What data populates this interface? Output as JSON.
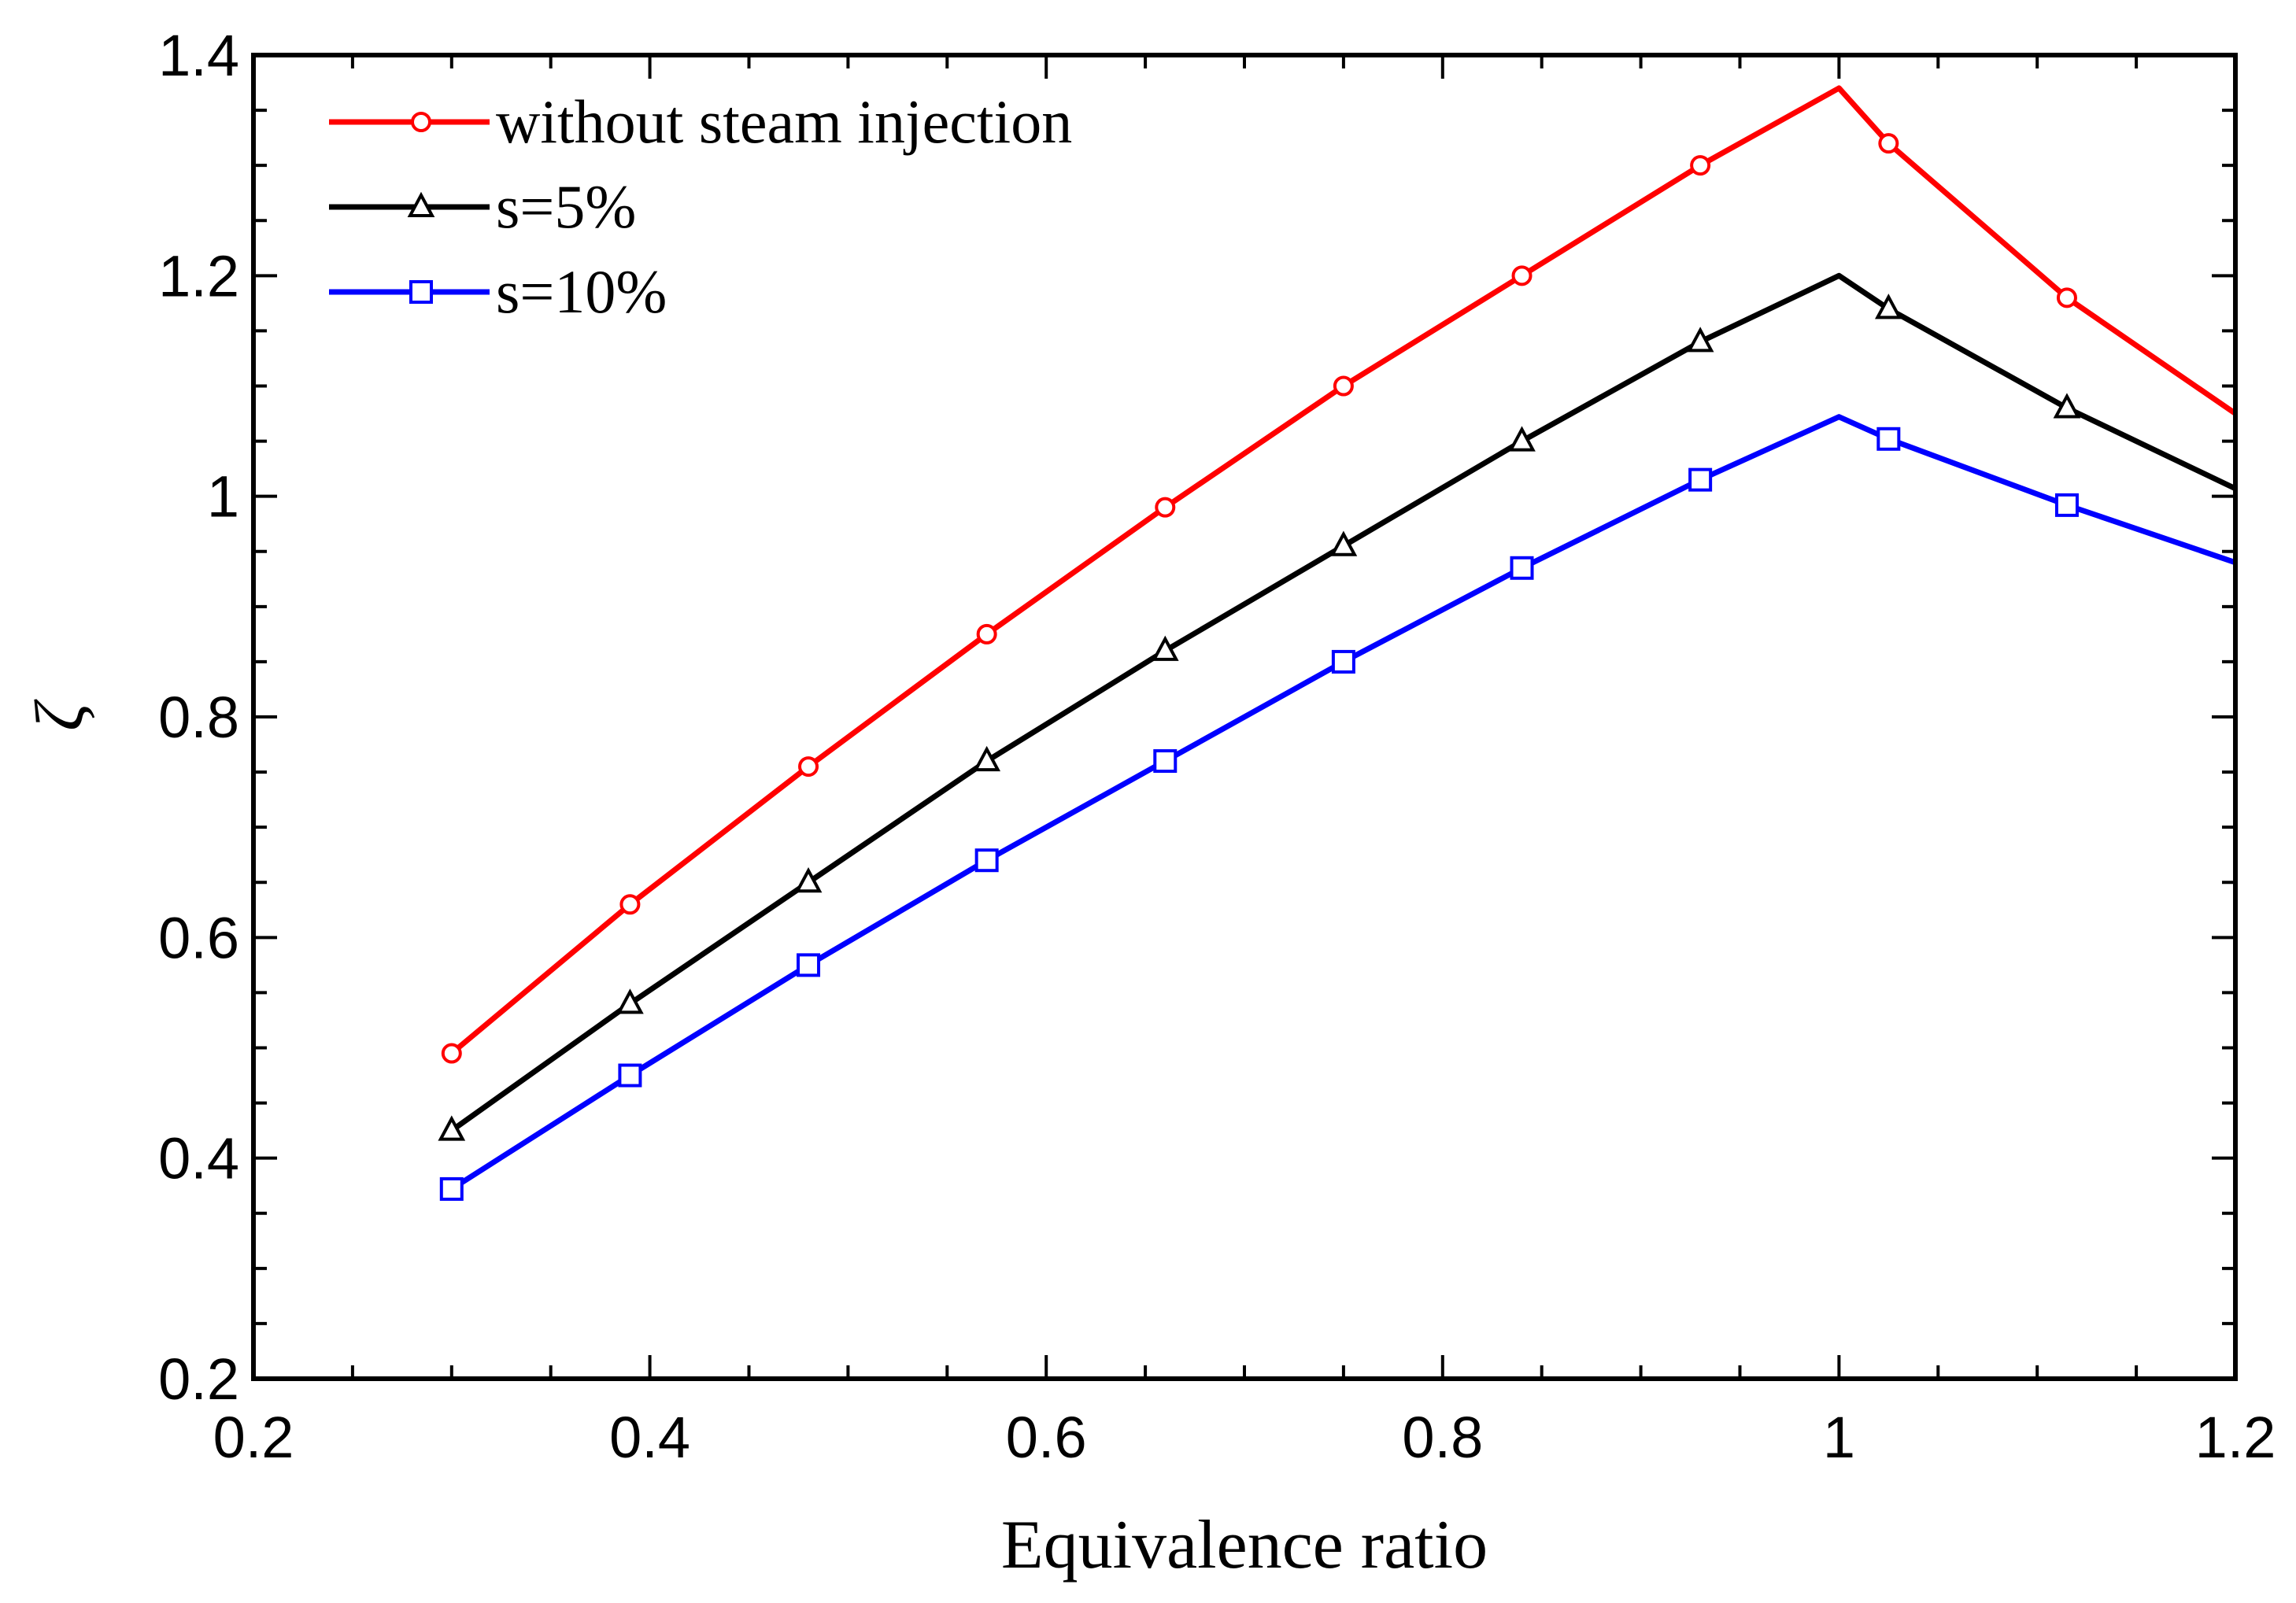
{
  "chart_data": {
    "type": "line",
    "title": "",
    "xlabel": "Equivalence ratio",
    "ylabel": "ζ",
    "xlim": [
      0.2,
      1.2
    ],
    "ylim": [
      0.2,
      1.4
    ],
    "xticks": [
      0.2,
      0.4,
      0.6,
      0.8,
      1.0,
      1.2
    ],
    "xtick_labels": [
      "0.2",
      "0.4",
      "0.6",
      "0.8",
      "1",
      "1.2"
    ],
    "yticks": [
      0.2,
      0.4,
      0.6,
      0.8,
      1.0,
      1.2,
      1.4
    ],
    "ytick_labels": [
      "0.2",
      "0.4",
      "0.6",
      "0.8",
      "1",
      "1.2",
      "1.4"
    ],
    "grid": false,
    "legend_position": "top-left",
    "series": [
      {
        "name": "without steam injection",
        "color": "#ff0000",
        "marker": "circle",
        "points": [
          [
            0.3,
            0.495
          ],
          [
            0.39,
            0.63
          ],
          [
            0.48,
            0.755
          ],
          [
            0.57,
            0.875
          ],
          [
            0.66,
            0.99
          ],
          [
            0.75,
            1.1
          ],
          [
            0.84,
            1.2
          ],
          [
            0.93,
            1.3
          ],
          [
            1.0,
            1.37
          ],
          [
            1.025,
            1.32
          ],
          [
            1.115,
            1.18
          ],
          [
            1.2,
            1.075
          ]
        ],
        "markers": [
          [
            0.3,
            0.495
          ],
          [
            0.39,
            0.63
          ],
          [
            0.48,
            0.755
          ],
          [
            0.57,
            0.875
          ],
          [
            0.66,
            0.99
          ],
          [
            0.75,
            1.1
          ],
          [
            0.84,
            1.2
          ],
          [
            0.93,
            1.3
          ],
          [
            1.025,
            1.32
          ],
          [
            1.115,
            1.18
          ]
        ]
      },
      {
        "name": "s=5%",
        "color": "#000000",
        "marker": "triangle",
        "points": [
          [
            0.3,
            0.425
          ],
          [
            0.39,
            0.54
          ],
          [
            0.48,
            0.65
          ],
          [
            0.57,
            0.76
          ],
          [
            0.66,
            0.86
          ],
          [
            0.75,
            0.955
          ],
          [
            0.84,
            1.05
          ],
          [
            0.93,
            1.14
          ],
          [
            1.0,
            1.2
          ],
          [
            1.025,
            1.17
          ],
          [
            1.115,
            1.08
          ],
          [
            1.2,
            1.007
          ]
        ],
        "markers": [
          [
            0.3,
            0.425
          ],
          [
            0.39,
            0.54
          ],
          [
            0.48,
            0.65
          ],
          [
            0.57,
            0.76
          ],
          [
            0.66,
            0.86
          ],
          [
            0.75,
            0.955
          ],
          [
            0.84,
            1.05
          ],
          [
            0.93,
            1.14
          ],
          [
            1.025,
            1.17
          ],
          [
            1.115,
            1.08
          ]
        ]
      },
      {
        "name": "s=10%",
        "color": "#0000ff",
        "marker": "square",
        "points": [
          [
            0.3,
            0.372
          ],
          [
            0.39,
            0.475
          ],
          [
            0.48,
            0.575
          ],
          [
            0.57,
            0.67
          ],
          [
            0.66,
            0.76
          ],
          [
            0.75,
            0.85
          ],
          [
            0.84,
            0.935
          ],
          [
            0.93,
            1.015
          ],
          [
            1.0,
            1.072
          ],
          [
            1.025,
            1.052
          ],
          [
            1.115,
            0.992
          ],
          [
            1.2,
            0.94
          ]
        ],
        "markers": [
          [
            0.3,
            0.372
          ],
          [
            0.39,
            0.475
          ],
          [
            0.48,
            0.575
          ],
          [
            0.57,
            0.67
          ],
          [
            0.66,
            0.76
          ],
          [
            0.75,
            0.85
          ],
          [
            0.84,
            0.935
          ],
          [
            0.93,
            1.015
          ],
          [
            1.025,
            1.052
          ],
          [
            1.115,
            0.992
          ]
        ]
      }
    ]
  }
}
